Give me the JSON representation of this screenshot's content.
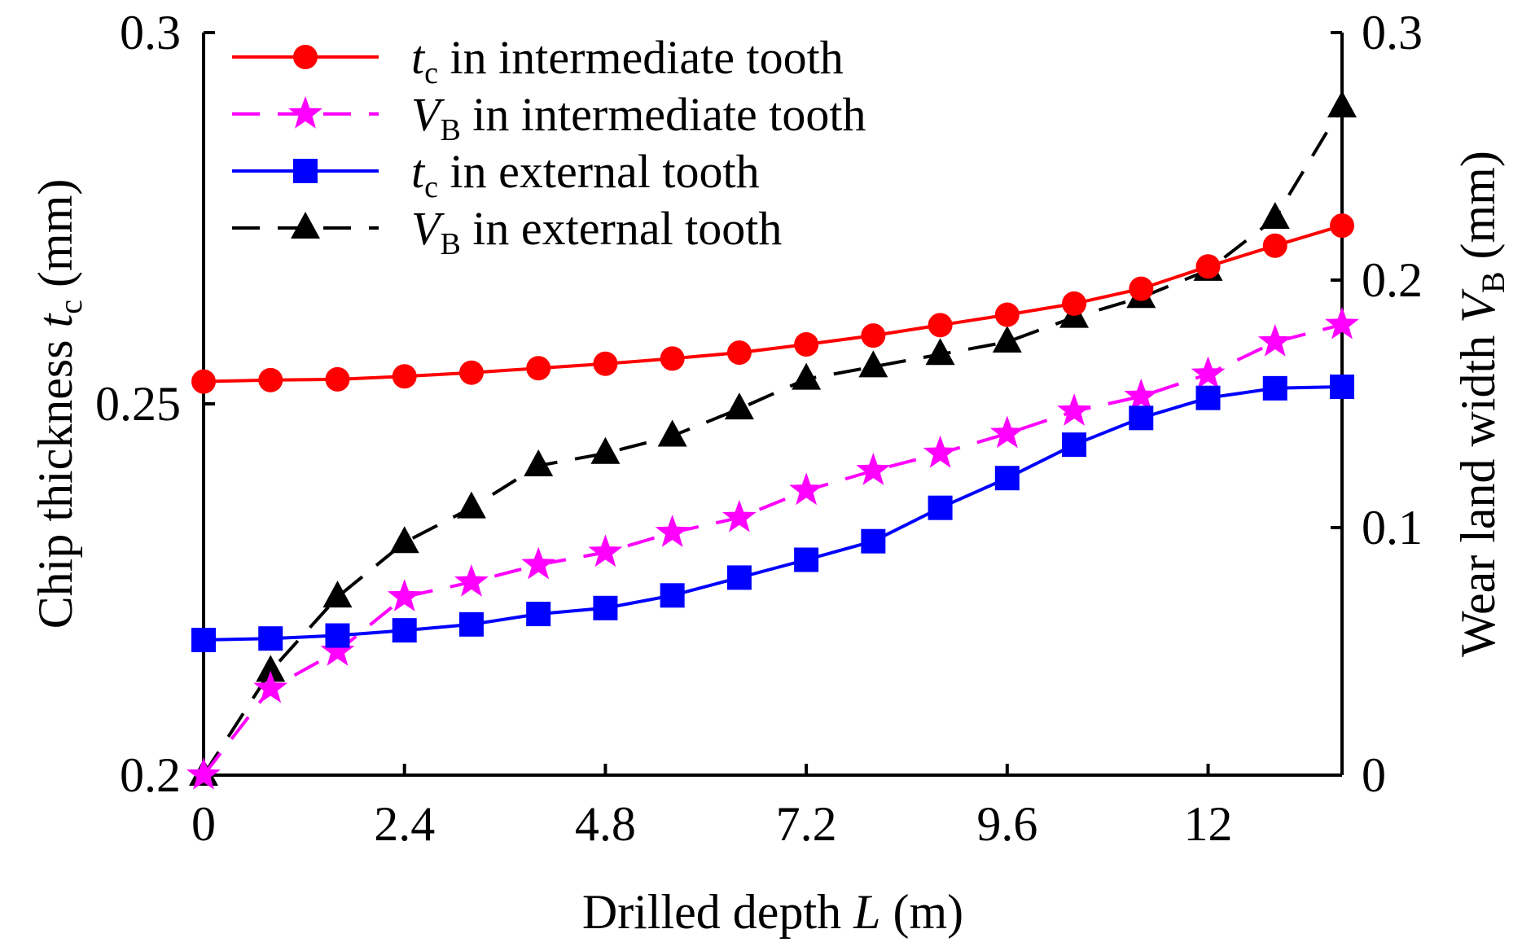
{
  "chart_data": {
    "type": "line",
    "xlabel": {
      "prefix": "Drilled depth ",
      "italic": "L",
      "suffix": " (m)"
    },
    "ylabel_left": {
      "prefix": "Chip thickness ",
      "italic": "t",
      "sub": "c",
      "suffix": " (mm)"
    },
    "ylabel_right": {
      "prefix": "Wear land width ",
      "italic": "V",
      "sub": "B",
      "suffix": " (mm)"
    },
    "xlim": [
      0,
      13.6
    ],
    "ylim_left": [
      0.2,
      0.3
    ],
    "ylim_right": [
      0,
      0.3
    ],
    "x_ticks": [
      0,
      2.4,
      4.8,
      7.2,
      9.6,
      12
    ],
    "x_tick_labels": [
      "0",
      "2.4",
      "4.8",
      "7.2",
      "9.6",
      "12"
    ],
    "y_left_ticks": [
      0.2,
      0.25,
      0.3
    ],
    "y_left_tick_labels": [
      "0.2",
      "0.25",
      "0.3"
    ],
    "y_right_ticks": [
      0,
      0.1,
      0.2,
      0.3
    ],
    "y_right_tick_labels": [
      "0",
      "0.1",
      "0.2",
      "0.3"
    ],
    "x": [
      0,
      0.8,
      1.6,
      2.4,
      3.2,
      4.0,
      4.8,
      5.6,
      6.4,
      7.2,
      8.0,
      8.8,
      9.6,
      10.4,
      11.2,
      12.0,
      12.8,
      13.6
    ],
    "series": [
      {
        "name_italic": "t",
        "name_sub": "c",
        "name_rest": " in intermediate tooth",
        "axis": "left",
        "color": "#ff0000",
        "marker": "circle",
        "dash": "solid",
        "values": [
          0.253,
          0.2532,
          0.2533,
          0.2537,
          0.2542,
          0.2548,
          0.2554,
          0.2561,
          0.2569,
          0.258,
          0.2592,
          0.2606,
          0.262,
          0.2635,
          0.2655,
          0.2685,
          0.2713,
          0.274
        ]
      },
      {
        "name_italic": "V",
        "name_sub": "B",
        "name_rest": " in intermediate tooth",
        "axis": "right",
        "color": "#ff00ff",
        "marker": "star",
        "dash": "dashed",
        "values": [
          0.0,
          0.035,
          0.05,
          0.072,
          0.078,
          0.085,
          0.09,
          0.098,
          0.104,
          0.115,
          0.123,
          0.13,
          0.138,
          0.147,
          0.153,
          0.162,
          0.175,
          0.182
        ]
      },
      {
        "name_italic": "t",
        "name_sub": "c",
        "name_rest": " in external tooth",
        "axis": "left",
        "color": "#0000ff",
        "marker": "square",
        "dash": "solid",
        "values": [
          0.2182,
          0.2184,
          0.2188,
          0.2195,
          0.2203,
          0.2217,
          0.2225,
          0.2242,
          0.2266,
          0.229,
          0.2315,
          0.236,
          0.24,
          0.2445,
          0.2481,
          0.2508,
          0.2521,
          0.2523
        ]
      },
      {
        "name_italic": "V",
        "name_sub": "B",
        "name_rest": " in external tooth",
        "axis": "right",
        "color": "#000000",
        "marker": "triangle",
        "dash": "dashed",
        "values": [
          0.0,
          0.042,
          0.072,
          0.094,
          0.108,
          0.125,
          0.13,
          0.137,
          0.148,
          0.16,
          0.165,
          0.17,
          0.175,
          0.185,
          0.193,
          0.204,
          0.225,
          0.27
        ]
      }
    ]
  }
}
